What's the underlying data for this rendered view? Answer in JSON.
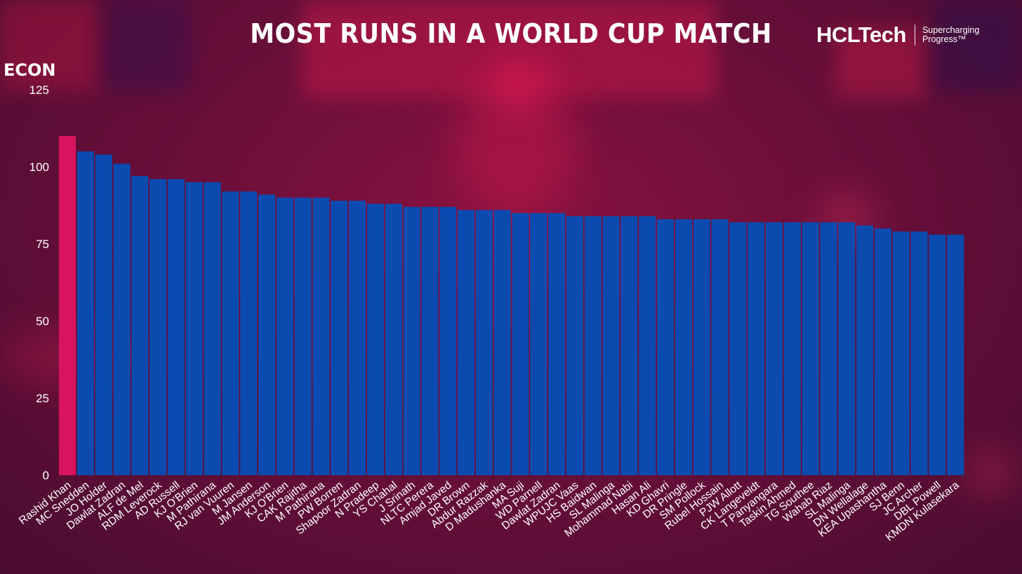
{
  "title": "MOST RUNS IN A WORLD CUP MATCH",
  "brand": {
    "name": "HCLTech",
    "tagline_line1": "Supercharging",
    "tagline_line2": "Progress™"
  },
  "colors": {
    "highlight_bar": "#d8145e",
    "bar": "#0b4bb0",
    "text": "#ffffff"
  },
  "chart_data": {
    "type": "bar",
    "title": "MOST RUNS IN A WORLD CUP MATCH",
    "ylabel": "ECON",
    "xlabel": "",
    "ylim": [
      0,
      125
    ],
    "yticks": [
      0,
      25,
      50,
      75,
      100,
      125
    ],
    "grid": false,
    "highlight_index": 0,
    "categories": [
      "Rashid Khan",
      "MC Snedden",
      "JO Holder",
      "Dawlat Zadran",
      "ALF de Mel",
      "RDM Leverock",
      "AD Russell",
      "KJ O'Brien",
      "M Pathirana",
      "RJ van Vuuren",
      "M Jansen",
      "JM Anderson",
      "KJ O'Brien",
      "CAK Rajitha",
      "M Pathirana",
      "PW Borren",
      "Shapoor Zadran",
      "N Pradeep",
      "YS Chahal",
      "J Srinath",
      "NLTC Perera",
      "Amjad Javed",
      "DR Brown",
      "Abdur Razzak",
      "D Madushanka",
      "MA Suji",
      "WD Parnell",
      "Dawlat Zadran",
      "WPUJC Vaas",
      "HS Baidwan",
      "SL Malinga",
      "Mohammad Nabi",
      "Hasan Ali",
      "KD Ghavri",
      "DR Pringle",
      "SM Pollock",
      "Rubel Hossain",
      "PJW Allott",
      "CK Langeveldt",
      "T Panyangara",
      "Taskin Ahmed",
      "TG Southee",
      "Wahab Riaz",
      "SL Malinga",
      "DN Wellalage",
      "KEA Upashantha",
      "SJ Benn",
      "JC Archer",
      "DBL Powell",
      "KMDN Kulasekara"
    ],
    "values": [
      110,
      105,
      104,
      101,
      97,
      96,
      96,
      95,
      95,
      92,
      92,
      91,
      90,
      90,
      90,
      89,
      89,
      88,
      88,
      87,
      87,
      87,
      86,
      86,
      86,
      85,
      85,
      85,
      84,
      84,
      84,
      84,
      84,
      83,
      83,
      83,
      83,
      82,
      82,
      82,
      82,
      82,
      82,
      82,
      81,
      80,
      79,
      79,
      78,
      78
    ]
  }
}
